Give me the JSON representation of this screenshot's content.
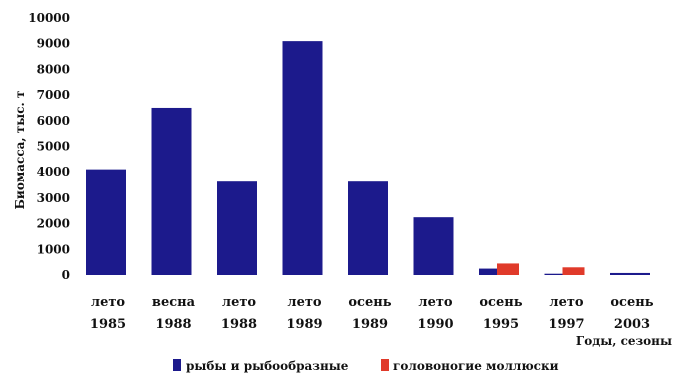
{
  "chart_data": {
    "type": "bar",
    "categories": [
      {
        "season": "лето",
        "year": "1985"
      },
      {
        "season": "весна",
        "year": "1988"
      },
      {
        "season": "лето",
        "year": "1988"
      },
      {
        "season": "лето",
        "year": "1989"
      },
      {
        "season": "осень",
        "year": "1989"
      },
      {
        "season": "лето",
        "year": "1990"
      },
      {
        "season": "осень",
        "year": "1995"
      },
      {
        "season": "лето",
        "year": "1997"
      },
      {
        "season": "осень",
        "year": "2003"
      }
    ],
    "series": [
      {
        "name": "рыбы и рыбообразные",
        "color": "#1c1a8c",
        "values": [
          4100,
          6500,
          3650,
          9100,
          3650,
          2250,
          250,
          50,
          80
        ]
      },
      {
        "name": "головоногие моллюски",
        "color": "#e03a2a",
        "values": [
          null,
          null,
          null,
          null,
          null,
          null,
          450,
          300,
          null
        ]
      }
    ],
    "xlabel": "Годы, сезоны",
    "ylabel": "Биомасса, тыс. т",
    "ylim": [
      0,
      10000
    ],
    "yticks": [
      0,
      1000,
      2000,
      3000,
      4000,
      5000,
      6000,
      7000,
      8000,
      9000,
      10000
    ],
    "grid": false,
    "legend": "bottom"
  }
}
